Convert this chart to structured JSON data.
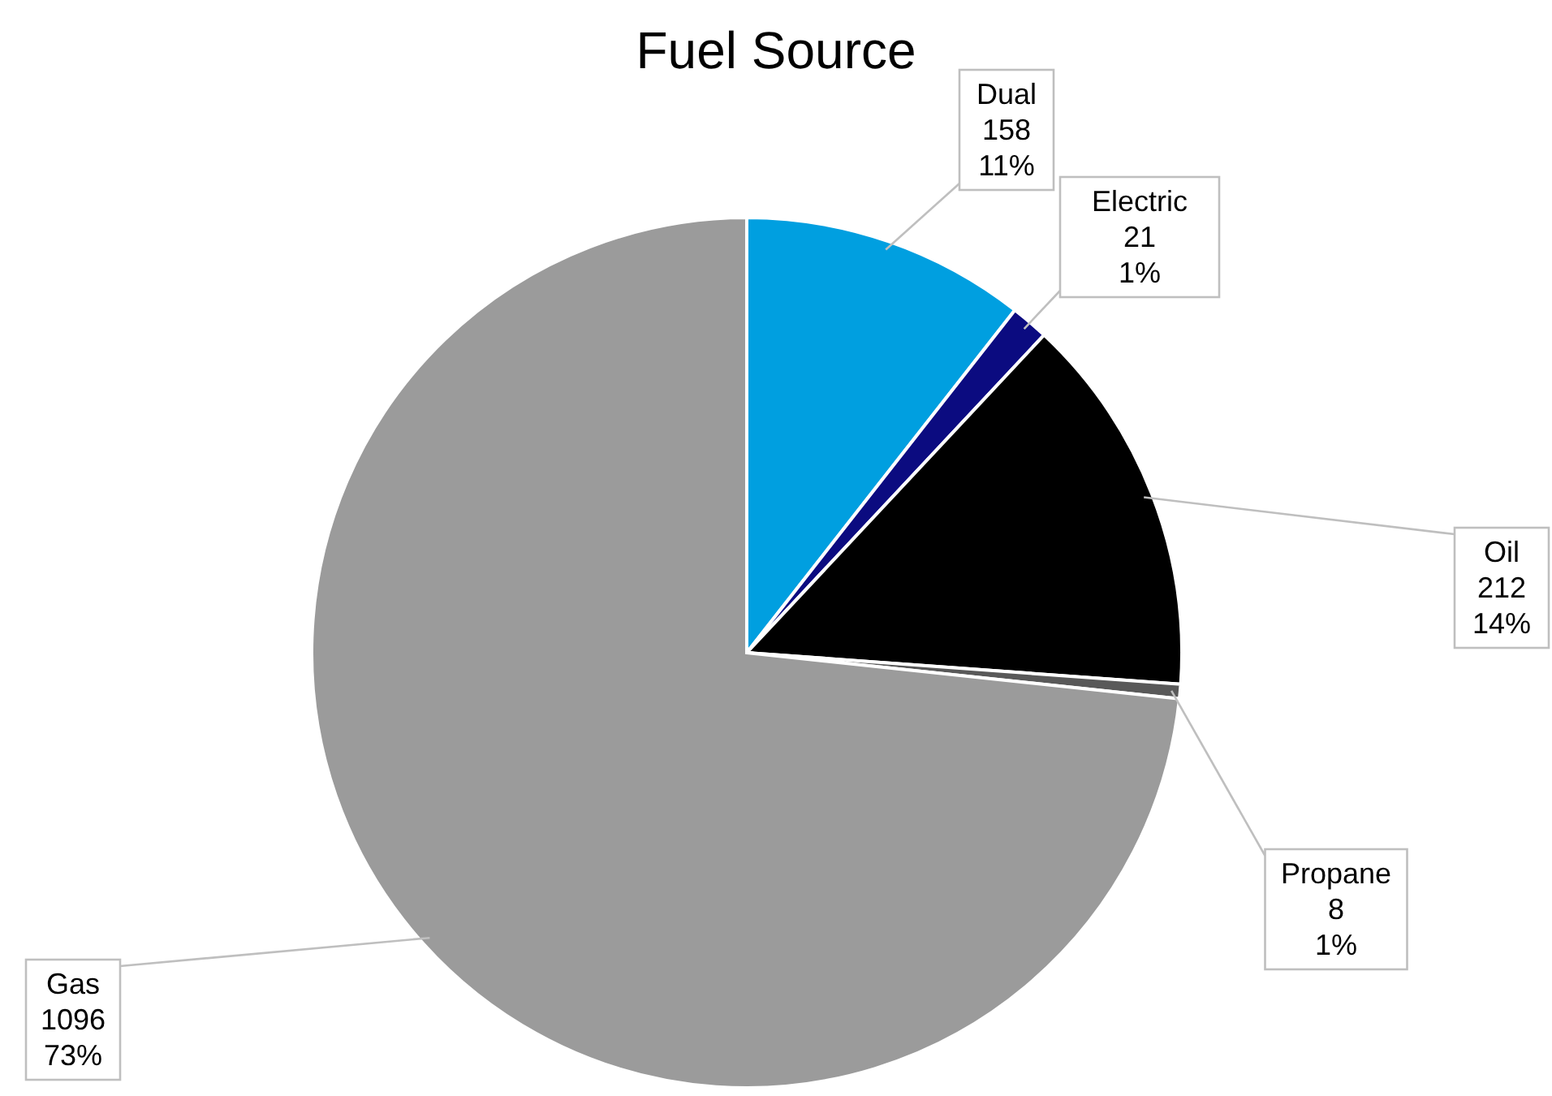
{
  "chart_data": {
    "type": "pie",
    "title": "Fuel Source",
    "categories": [
      "Dual",
      "Electric",
      "Oil",
      "Propane",
      "Gas"
    ],
    "values": [
      158,
      21,
      212,
      8,
      1096
    ],
    "colors": [
      "#009fe0",
      "#0b0b80",
      "#000000",
      "#595959",
      "#9b9b9b"
    ],
    "value_labels": [
      "158\n11%",
      "21\n1%",
      "212\n14%",
      "8\n1%",
      "1096\n73%"
    ]
  }
}
